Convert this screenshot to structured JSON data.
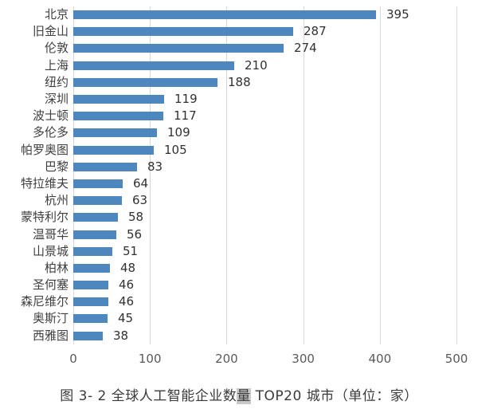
{
  "chart_data": {
    "type": "bar",
    "orientation": "horizontal",
    "title": "",
    "categories": [
      "北京",
      "旧金山",
      "伦敦",
      "上海",
      "纽约",
      "深圳",
      "波士顿",
      "多伦多",
      "帕罗奥图",
      "巴黎",
      "特拉维夫",
      "杭州",
      "蒙特利尔",
      "温哥华",
      "山景城",
      "柏林",
      "圣何塞",
      "森尼维尔",
      "奥斯汀",
      "西雅图"
    ],
    "values": [
      395,
      287,
      274,
      210,
      188,
      119,
      117,
      109,
      105,
      83,
      64,
      63,
      58,
      56,
      51,
      48,
      46,
      46,
      45,
      38
    ],
    "xlim": [
      0,
      500
    ],
    "x_ticks": [
      "0",
      "100",
      "200",
      "300",
      "400",
      "500"
    ],
    "grid": "vertical-only",
    "legend": "none",
    "value_labels": "outside-end",
    "bar_color": "#4E86BE",
    "gridline_color": "#D6D6D6"
  },
  "caption": {
    "prefix": "图 3- 2 全球人工智能企业数",
    "highlight": "量",
    "suffix": " TOP20 城市（单位：家）"
  },
  "colors": {
    "bar": "#4E86BE",
    "gridline": "#D6D6D6",
    "category_label": "#3F3F3F",
    "value_label": "#303030",
    "axis_label": "#595959",
    "caption_text": "#3A3A3A",
    "caption_highlight_bg": "#C9C9C9"
  }
}
